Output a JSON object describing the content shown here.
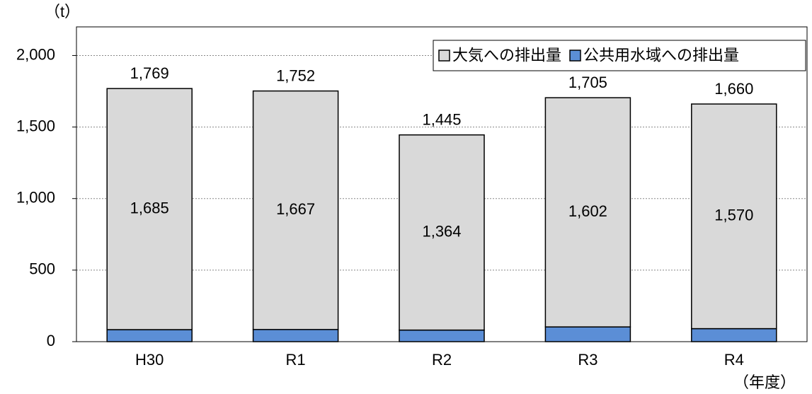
{
  "chart_data": {
    "type": "stacked_bar",
    "y_label": "（t）",
    "x_label": "（年度）",
    "categories": [
      "H30",
      "R1",
      "R2",
      "R3",
      "R4"
    ],
    "series": [
      {
        "name": "大気への排出量",
        "color": "#d9d9d9",
        "values": [
          1685,
          1667,
          1364,
          1602,
          1570
        ],
        "value_labels": [
          "1,685",
          "1,667",
          "1,364",
          "1,602",
          "1,570"
        ]
      },
      {
        "name": "公共用水域への排出量",
        "color": "#5b8ed6",
        "values": [
          84,
          85,
          81,
          103,
          91
        ]
      }
    ],
    "totals": {
      "values": [
        1769,
        1752,
        1445,
        1705,
        1660
      ],
      "value_labels": [
        "1,769",
        "1,752",
        "1,445",
        "1,705",
        "1,660"
      ]
    },
    "ylim": [
      0,
      2200
    ],
    "yticks": [
      0,
      500,
      {
        "value": 1000,
        "label": "1,000"
      },
      {
        "value": 1500,
        "label": "1,500"
      },
      {
        "value": 2000,
        "label": "2,000"
      }
    ],
    "grid": true,
    "legend": "top-right"
  }
}
